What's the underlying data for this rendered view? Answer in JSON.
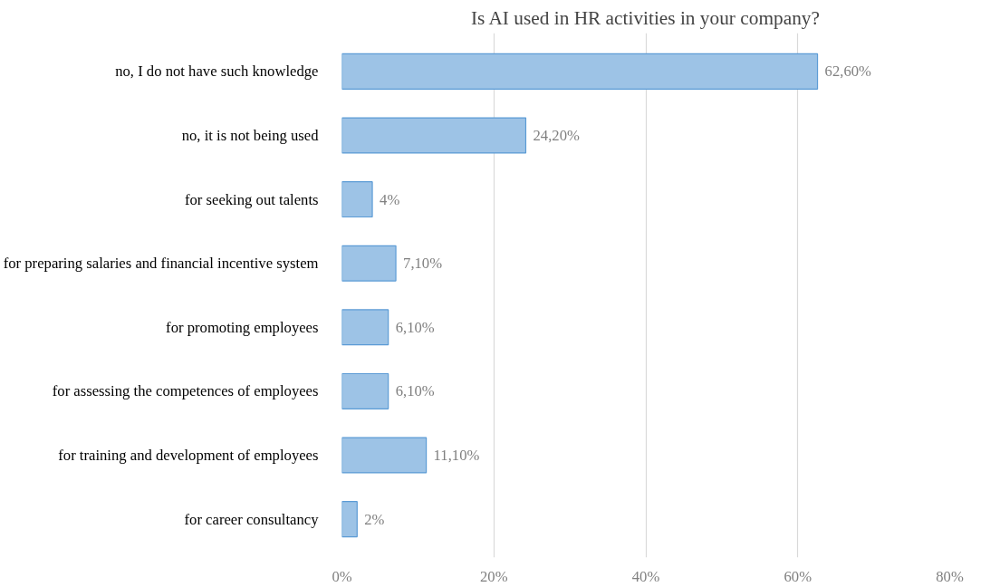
{
  "chart_data": {
    "type": "bar",
    "orientation": "horizontal",
    "title": "Is AI used in HR activities in your company?",
    "categories": [
      "no, I do not have such knowledge",
      "no, it is not being used",
      "for seeking out talents",
      "for preparing salaries and financial incentive system",
      "for promoting employees",
      "for assessing the competences of employees",
      "for training and development of employees",
      "for career consultancy"
    ],
    "values": [
      62.6,
      24.2,
      4,
      7.1,
      6.1,
      6.1,
      11.1,
      2
    ],
    "value_labels": [
      "62,60%",
      "24,20%",
      "4%",
      "7,10%",
      "6,10%",
      "6,10%",
      "11,10%",
      "2%"
    ],
    "color": "#9dc3e6",
    "xlim": [
      0,
      80
    ],
    "xticks": [
      {
        "value": 0,
        "label": "0%"
      },
      {
        "value": 20,
        "label": "20%"
      },
      {
        "value": 40,
        "label": "40%"
      },
      {
        "value": 60,
        "label": "60%"
      },
      {
        "value": 80,
        "label": "80%"
      }
    ],
    "grid": "x"
  }
}
